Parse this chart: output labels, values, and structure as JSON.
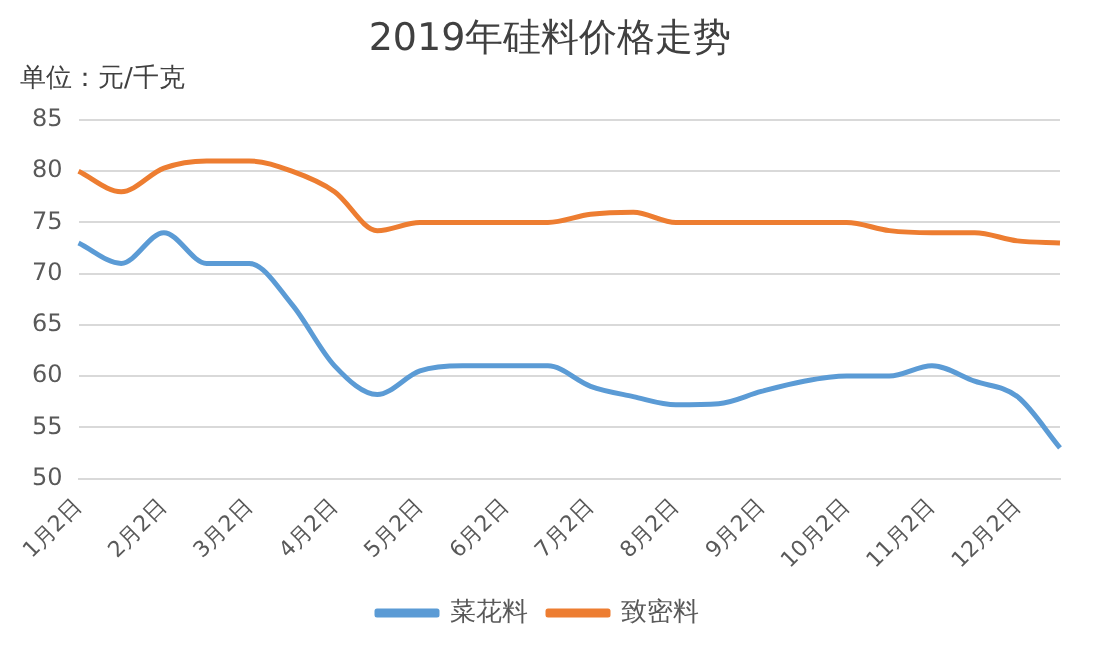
{
  "chart_data": {
    "type": "line",
    "title": "2019年硅料价格走势",
    "ylabel": "单位：元/千克",
    "categories": [
      "1月2日",
      null,
      "2月2日",
      null,
      "3月2日",
      null,
      "4月2日",
      null,
      "5月2日",
      null,
      "6月2日",
      null,
      "7月2日",
      null,
      "8月2日",
      null,
      "9月2日",
      null,
      "10月2日",
      null,
      "11月2日",
      null,
      "12月2日",
      null
    ],
    "series": [
      {
        "name": "菜花料",
        "color": "#5b9bd5",
        "values": [
          73,
          71,
          74,
          71,
          71,
          67,
          61,
          58.2,
          60.5,
          61,
          61,
          61,
          59,
          58,
          57.2,
          57.3,
          58.5,
          59.5,
          60,
          60,
          61,
          59.5,
          58,
          53
        ]
      },
      {
        "name": "致密料",
        "color": "#ed7d31",
        "values": [
          80,
          78,
          80.3,
          81,
          81,
          80,
          78,
          74.2,
          75,
          75,
          75,
          75,
          75.8,
          76,
          75,
          75,
          75,
          75,
          75,
          74.2,
          74,
          74,
          73.2,
          73
        ]
      }
    ],
    "ylim": [
      50,
      85
    ],
    "yticks": [
      50,
      55,
      60,
      65,
      70,
      75,
      80,
      85
    ],
    "grid": "y",
    "legend": "bottom",
    "marker": "none",
    "line_style": "solid"
  }
}
